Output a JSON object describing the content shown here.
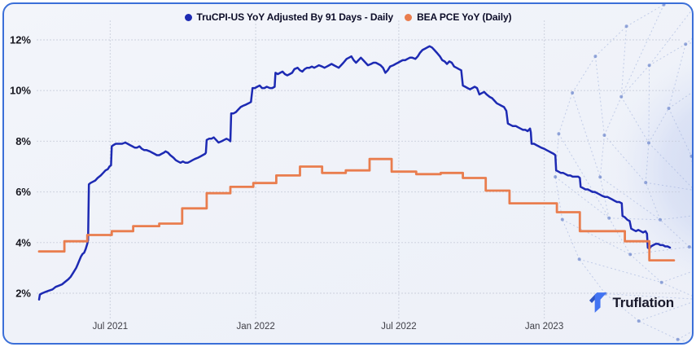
{
  "legend": {
    "items": [
      {
        "label": "TruCPI-US YoY Adjusted By 91 Days - Daily",
        "color": "#1d2ab3"
      },
      {
        "label": "BEA PCE YoY (Daily)",
        "color": "#e97d4e"
      }
    ]
  },
  "branding": {
    "logo_text": "Truflation",
    "logo_mark_dark": "#2f55c4",
    "logo_mark_light": "#4374f2"
  },
  "card": {
    "border_color": "#3b6fd8",
    "background": "#f1f3f9"
  },
  "chart_data": {
    "type": "line",
    "title": "",
    "xlabel": "",
    "ylabel": "",
    "x_unit": "days since 2021-04-02",
    "x_range": [
      0,
      803
    ],
    "ylim": [
      1.3,
      12.7
    ],
    "grid": "dotted",
    "legend_position": "top-center",
    "y_ticks": [
      {
        "value": 2,
        "label": "2%"
      },
      {
        "value": 4,
        "label": "4%"
      },
      {
        "value": 6,
        "label": "6%"
      },
      {
        "value": 8,
        "label": "8%"
      },
      {
        "value": 10,
        "label": "10%"
      },
      {
        "value": 12,
        "label": "12%"
      }
    ],
    "x_ticks": [
      {
        "day": 90,
        "label": "Jul 2021"
      },
      {
        "day": 274,
        "label": "Jan 2022"
      },
      {
        "day": 455,
        "label": "Jul 2022"
      },
      {
        "day": 639,
        "label": "Jan 2023"
      }
    ],
    "series": [
      {
        "name": "TruCPI-US YoY Adjusted By 91 Days - Daily",
        "color": "#1d2ab3",
        "style": "line",
        "points": [
          [
            0,
            1.75
          ],
          [
            1,
            1.95
          ],
          [
            4,
            2.0
          ],
          [
            8,
            2.05
          ],
          [
            12,
            2.1
          ],
          [
            17,
            2.15
          ],
          [
            21,
            2.25
          ],
          [
            25,
            2.3
          ],
          [
            29,
            2.35
          ],
          [
            33,
            2.45
          ],
          [
            37,
            2.55
          ],
          [
            40,
            2.65
          ],
          [
            43,
            2.8
          ],
          [
            47,
            3.0
          ],
          [
            49,
            3.15
          ],
          [
            51,
            3.3
          ],
          [
            53,
            3.45
          ],
          [
            55,
            3.55
          ],
          [
            57,
            3.6
          ],
          [
            59,
            3.75
          ],
          [
            61,
            3.95
          ],
          [
            62,
            4.1
          ],
          [
            63,
            6.3
          ],
          [
            65,
            6.35
          ],
          [
            68,
            6.4
          ],
          [
            71,
            6.45
          ],
          [
            74,
            6.55
          ],
          [
            78,
            6.65
          ],
          [
            81,
            6.75
          ],
          [
            84,
            6.85
          ],
          [
            87,
            6.9
          ],
          [
            89,
            7.0
          ],
          [
            91,
            7.05
          ],
          [
            92,
            7.8
          ],
          [
            94,
            7.85
          ],
          [
            97,
            7.9
          ],
          [
            105,
            7.9
          ],
          [
            109,
            7.95
          ],
          [
            112,
            7.9
          ],
          [
            115,
            7.85
          ],
          [
            118,
            7.8
          ],
          [
            121,
            7.75
          ],
          [
            124,
            7.75
          ],
          [
            127,
            7.8
          ],
          [
            130,
            7.7
          ],
          [
            133,
            7.65
          ],
          [
            136,
            7.65
          ],
          [
            140,
            7.6
          ],
          [
            143,
            7.55
          ],
          [
            146,
            7.5
          ],
          [
            149,
            7.45
          ],
          [
            152,
            7.45
          ],
          [
            155,
            7.5
          ],
          [
            158,
            7.55
          ],
          [
            160,
            7.6
          ],
          [
            163,
            7.55
          ],
          [
            166,
            7.45
          ],
          [
            170,
            7.35
          ],
          [
            173,
            7.25
          ],
          [
            176,
            7.2
          ],
          [
            179,
            7.15
          ],
          [
            182,
            7.2
          ],
          [
            185,
            7.15
          ],
          [
            188,
            7.15
          ],
          [
            191,
            7.2
          ],
          [
            194,
            7.25
          ],
          [
            197,
            7.3
          ],
          [
            201,
            7.35
          ],
          [
            204,
            7.4
          ],
          [
            207,
            7.45
          ],
          [
            210,
            7.5
          ],
          [
            211,
            7.55
          ],
          [
            212,
            8.05
          ],
          [
            215,
            8.1
          ],
          [
            218,
            8.1
          ],
          [
            221,
            8.15
          ],
          [
            224,
            8.05
          ],
          [
            227,
            7.95
          ],
          [
            231,
            8.0
          ],
          [
            234,
            8.05
          ],
          [
            237,
            8.1
          ],
          [
            240,
            8.05
          ],
          [
            242,
            8.0
          ],
          [
            243,
            9.1
          ],
          [
            246,
            9.1
          ],
          [
            249,
            9.15
          ],
          [
            252,
            9.25
          ],
          [
            255,
            9.35
          ],
          [
            258,
            9.4
          ],
          [
            262,
            9.45
          ],
          [
            265,
            9.5
          ],
          [
            268,
            9.55
          ],
          [
            270,
            10.1
          ],
          [
            273,
            10.1
          ],
          [
            276,
            10.15
          ],
          [
            279,
            10.2
          ],
          [
            282,
            10.1
          ],
          [
            285,
            10.1
          ],
          [
            288,
            10.15
          ],
          [
            292,
            10.1
          ],
          [
            295,
            10.1
          ],
          [
            298,
            10.15
          ],
          [
            299,
            10.7
          ],
          [
            302,
            10.65
          ],
          [
            305,
            10.7
          ],
          [
            308,
            10.75
          ],
          [
            311,
            10.65
          ],
          [
            314,
            10.6
          ],
          [
            317,
            10.65
          ],
          [
            320,
            10.7
          ],
          [
            323,
            10.85
          ],
          [
            327,
            10.9
          ],
          [
            330,
            10.8
          ],
          [
            333,
            10.75
          ],
          [
            336,
            10.85
          ],
          [
            339,
            10.9
          ],
          [
            342,
            10.9
          ],
          [
            345,
            10.95
          ],
          [
            348,
            10.9
          ],
          [
            351,
            10.95
          ],
          [
            354,
            11.0
          ],
          [
            358,
            10.95
          ],
          [
            361,
            10.9
          ],
          [
            364,
            10.95
          ],
          [
            367,
            11.0
          ],
          [
            370,
            11.05
          ],
          [
            373,
            11.0
          ],
          [
            376,
            10.95
          ],
          [
            379,
            10.9
          ],
          [
            382,
            11.0
          ],
          [
            385,
            11.1
          ],
          [
            389,
            11.25
          ],
          [
            392,
            11.3
          ],
          [
            395,
            11.35
          ],
          [
            398,
            11.2
          ],
          [
            401,
            11.1
          ],
          [
            404,
            11.2
          ],
          [
            407,
            11.3
          ],
          [
            410,
            11.2
          ],
          [
            413,
            11.1
          ],
          [
            416,
            11.0
          ],
          [
            420,
            11.05
          ],
          [
            423,
            11.1
          ],
          [
            426,
            11.1
          ],
          [
            429,
            11.05
          ],
          [
            432,
            11.0
          ],
          [
            435,
            10.9
          ],
          [
            438,
            10.7
          ],
          [
            441,
            10.8
          ],
          [
            444,
            10.95
          ],
          [
            448,
            11.0
          ],
          [
            451,
            11.05
          ],
          [
            454,
            11.1
          ],
          [
            457,
            11.15
          ],
          [
            460,
            11.2
          ],
          [
            463,
            11.2
          ],
          [
            466,
            11.25
          ],
          [
            469,
            11.3
          ],
          [
            472,
            11.3
          ],
          [
            476,
            11.25
          ],
          [
            479,
            11.35
          ],
          [
            482,
            11.5
          ],
          [
            485,
            11.6
          ],
          [
            488,
            11.65
          ],
          [
            491,
            11.7
          ],
          [
            494,
            11.75
          ],
          [
            497,
            11.7
          ],
          [
            500,
            11.6
          ],
          [
            503,
            11.5
          ],
          [
            507,
            11.35
          ],
          [
            510,
            11.2
          ],
          [
            513,
            11.15
          ],
          [
            516,
            11.05
          ],
          [
            519,
            11.15
          ],
          [
            522,
            11.1
          ],
          [
            525,
            10.95
          ],
          [
            528,
            10.9
          ],
          [
            531,
            10.85
          ],
          [
            534,
            10.8
          ],
          [
            536,
            10.2
          ],
          [
            539,
            10.15
          ],
          [
            542,
            10.1
          ],
          [
            545,
            10.05
          ],
          [
            548,
            10.1
          ],
          [
            551,
            10.15
          ],
          [
            554,
            10.1
          ],
          [
            557,
            9.85
          ],
          [
            560,
            9.9
          ],
          [
            563,
            9.95
          ],
          [
            566,
            9.85
          ],
          [
            570,
            9.75
          ],
          [
            573,
            9.7
          ],
          [
            576,
            9.6
          ],
          [
            579,
            9.5
          ],
          [
            582,
            9.45
          ],
          [
            585,
            9.4
          ],
          [
            588,
            9.35
          ],
          [
            591,
            9.2
          ],
          [
            593,
            8.7
          ],
          [
            596,
            8.65
          ],
          [
            599,
            8.6
          ],
          [
            603,
            8.6
          ],
          [
            606,
            8.55
          ],
          [
            609,
            8.5
          ],
          [
            612,
            8.45
          ],
          [
            615,
            8.45
          ],
          [
            618,
            8.4
          ],
          [
            621,
            8.5
          ],
          [
            622,
            8.35
          ],
          [
            623,
            7.9
          ],
          [
            626,
            7.9
          ],
          [
            629,
            7.85
          ],
          [
            632,
            7.8
          ],
          [
            635,
            7.75
          ],
          [
            639,
            7.7
          ],
          [
            642,
            7.65
          ],
          [
            645,
            7.6
          ],
          [
            648,
            7.55
          ],
          [
            651,
            7.5
          ],
          [
            653,
            7.45
          ],
          [
            654,
            6.85
          ],
          [
            657,
            6.8
          ],
          [
            660,
            6.75
          ],
          [
            663,
            6.75
          ],
          [
            666,
            6.7
          ],
          [
            669,
            6.65
          ],
          [
            672,
            6.65
          ],
          [
            675,
            6.6
          ],
          [
            678,
            6.6
          ],
          [
            682,
            6.6
          ],
          [
            684,
            6.55
          ],
          [
            685,
            6.2
          ],
          [
            688,
            6.15
          ],
          [
            691,
            6.1
          ],
          [
            694,
            6.1
          ],
          [
            697,
            6.05
          ],
          [
            700,
            6.0
          ],
          [
            703,
            6.0
          ],
          [
            706,
            5.95
          ],
          [
            709,
            5.9
          ],
          [
            712,
            5.85
          ],
          [
            716,
            5.8
          ],
          [
            719,
            5.8
          ],
          [
            722,
            5.75
          ],
          [
            725,
            5.7
          ],
          [
            728,
            5.65
          ],
          [
            731,
            5.6
          ],
          [
            734,
            5.6
          ],
          [
            737,
            5.55
          ],
          [
            738,
            5.05
          ],
          [
            741,
            5.0
          ],
          [
            744,
            4.9
          ],
          [
            747,
            4.85
          ],
          [
            749,
            4.55
          ],
          [
            752,
            4.5
          ],
          [
            755,
            4.45
          ],
          [
            758,
            4.5
          ],
          [
            761,
            4.45
          ],
          [
            764,
            4.4
          ],
          [
            767,
            4.45
          ],
          [
            769,
            4.35
          ],
          [
            770,
            3.8
          ],
          [
            772,
            3.75
          ],
          [
            774,
            3.85
          ],
          [
            777,
            3.9
          ],
          [
            780,
            3.95
          ],
          [
            783,
            3.95
          ],
          [
            786,
            3.9
          ],
          [
            789,
            3.9
          ],
          [
            792,
            3.85
          ],
          [
            795,
            3.85
          ],
          [
            798,
            3.8
          ]
        ]
      },
      {
        "name": "BEA PCE YoY (Daily)",
        "color": "#e97d4e",
        "style": "step",
        "segments": [
          [
            0,
            32,
            3.65
          ],
          [
            32,
            61,
            4.05
          ],
          [
            61,
            92,
            4.3
          ],
          [
            92,
            119,
            4.45
          ],
          [
            119,
            152,
            4.65
          ],
          [
            152,
            181,
            4.75
          ],
          [
            181,
            212,
            5.35
          ],
          [
            212,
            242,
            5.95
          ],
          [
            242,
            271,
            6.2
          ],
          [
            271,
            300,
            6.35
          ],
          [
            300,
            330,
            6.65
          ],
          [
            330,
            358,
            7.0
          ],
          [
            358,
            388,
            6.75
          ],
          [
            388,
            418,
            6.85
          ],
          [
            418,
            446,
            7.3
          ],
          [
            446,
            477,
            6.8
          ],
          [
            477,
            508,
            6.7
          ],
          [
            508,
            536,
            6.75
          ],
          [
            536,
            565,
            6.55
          ],
          [
            565,
            595,
            6.05
          ],
          [
            595,
            655,
            5.55
          ],
          [
            655,
            684,
            5.2
          ],
          [
            684,
            741,
            4.45
          ],
          [
            741,
            772,
            4.05
          ],
          [
            772,
            803,
            3.3
          ]
        ]
      }
    ]
  }
}
